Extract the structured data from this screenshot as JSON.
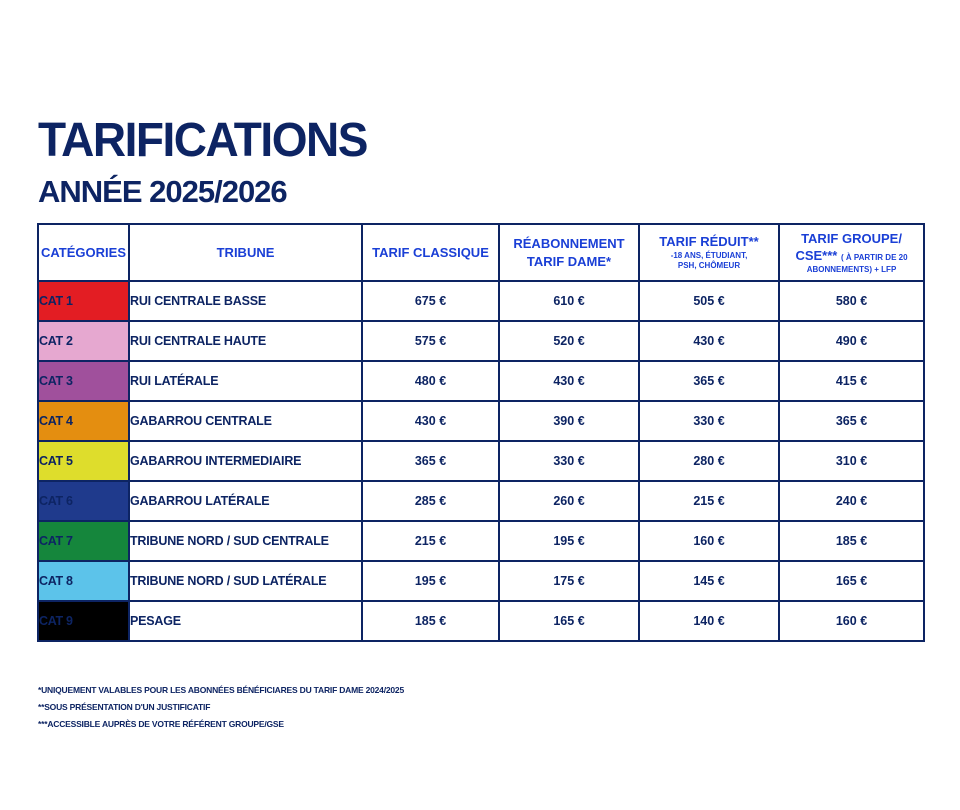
{
  "header": {
    "title": "TARIFICATIONS",
    "subtitle": "ANNÉE 2025/2026"
  },
  "table": {
    "columns": {
      "categories": "CATÉGORIES",
      "tribune": "TRIBUNE",
      "classique": "TARIF CLASSIQUE",
      "reabonnement_line1": "RÉABONNEMENT",
      "reabonnement_line2": "TARIF DAME*",
      "reduit_title": "TARIF RÉDUIT**",
      "reduit_detail_1": "-18 ANS, ÉTUDIANT,",
      "reduit_detail_2": "PSH, CHÔMEUR",
      "groupe_line1": "TARIF GROUPE/",
      "groupe_line2": "CSE***",
      "groupe_detail_1": "( À PARTIR DE 20",
      "groupe_detail_2": "ABONNEMENTS) + LFP"
    },
    "rows": [
      {
        "cat": "CAT 1",
        "color": "#e31d23",
        "tribune": "RUI CENTRALE BASSE",
        "classique": "675 €",
        "reabonnement": "610 €",
        "reduit": "505 €",
        "groupe": "580 €"
      },
      {
        "cat": "CAT 2",
        "color": "#e6a8d0",
        "tribune": "RUI CENTRALE HAUTE",
        "classique": "575 €",
        "reabonnement": "520 €",
        "reduit": "430 €",
        "groupe": "490 €"
      },
      {
        "cat": "CAT 3",
        "color": "#a0509c",
        "tribune": "RUI LATÉRALE",
        "classique": "480 €",
        "reabonnement": "430 €",
        "reduit": "365 €",
        "groupe": "415 €"
      },
      {
        "cat": "CAT 4",
        "color": "#e48e10",
        "tribune": "GABARROU CENTRALE",
        "classique": "430 €",
        "reabonnement": "390 €",
        "reduit": "330 €",
        "groupe": "365 €"
      },
      {
        "cat": "CAT 5",
        "color": "#dedd2c",
        "tribune": "GABARROU INTERMEDIAIRE",
        "classique": "365 €",
        "reabonnement": "330 €",
        "reduit": "280 €",
        "groupe": "310 €"
      },
      {
        "cat": "CAT 6",
        "color": "#1f3a8c",
        "tribune": "GABARROU LATÉRALE",
        "classique": "285 €",
        "reabonnement": "260 €",
        "reduit": "215 €",
        "groupe": "240 €"
      },
      {
        "cat": "CAT 7",
        "color": "#15863c",
        "tribune": "TRIBUNE NORD / SUD  CENTRALE",
        "classique": "215 €",
        "reabonnement": "195 €",
        "reduit": "160 €",
        "groupe": "185 €"
      },
      {
        "cat": "CAT 8",
        "color": "#5cc3ea",
        "tribune": "TRIBUNE NORD / SUD LATÉRALE",
        "classique": "195 €",
        "reabonnement": "175 €",
        "reduit": "145 €",
        "groupe": "165 €"
      },
      {
        "cat": "CAT 9",
        "color": "#000000",
        "tribune": "PESAGE",
        "classique": "185 €",
        "reabonnement": "165 €",
        "reduit": "140 €",
        "groupe": "160 €"
      }
    ]
  },
  "notes": [
    "*UNIQUEMENT  VALABLES POUR LES ABONNÉES BÉNÉFICIARES DU TARIF DAME 2024/2025",
    "**SOUS PRÉSENTATION D'UN JUSTIFICATIF",
    "***ACCESSIBLE AUPRÈS DE VOTRE  RÉFÉRENT GROUPE/GSE"
  ]
}
